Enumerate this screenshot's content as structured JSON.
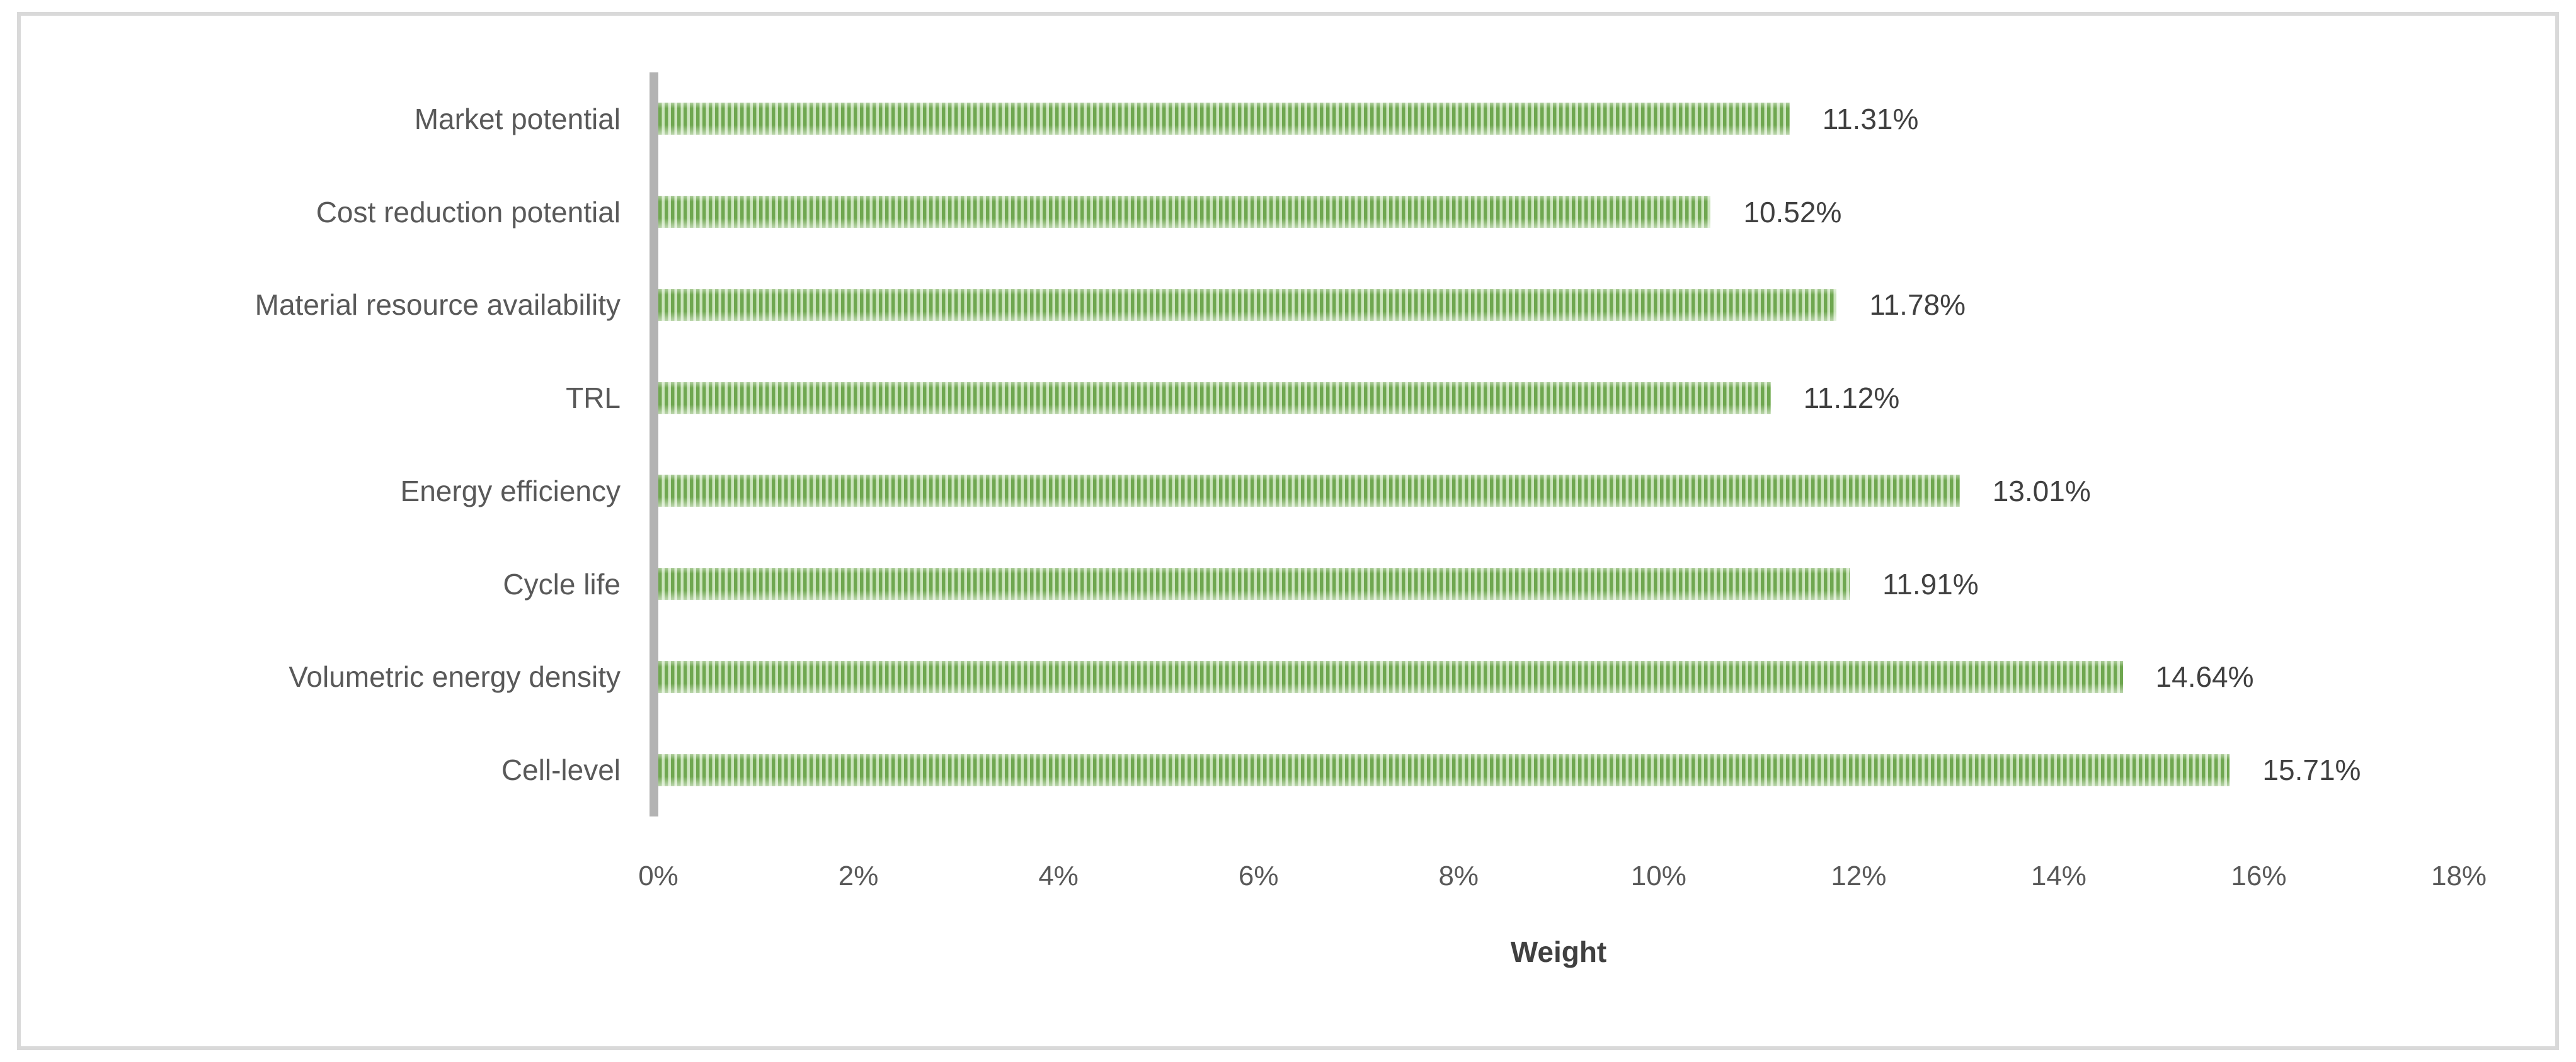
{
  "chart_data": {
    "type": "bar",
    "orientation": "horizontal",
    "title": "",
    "categories": [
      "Market potential",
      "Cost reduction potential",
      "Material resource availability",
      "TRL",
      "Energy efficiency",
      "Cycle life",
      "Volumetric energy density",
      "Cell-level"
    ],
    "values": [
      11.31,
      10.52,
      11.78,
      11.12,
      13.01,
      11.91,
      14.64,
      15.71
    ],
    "value_labels": [
      "11.31%",
      "10.52%",
      "11.78%",
      "11.12%",
      "13.01%",
      "11.91%",
      "14.64%",
      "15.71%"
    ],
    "xlabel": "Weight",
    "ylabel": "",
    "xlim": [
      0,
      18
    ],
    "x_tick_step": 2,
    "x_tick_labels": [
      "0%",
      "2%",
      "4%",
      "6%",
      "8%",
      "10%",
      "12%",
      "14%",
      "16%",
      "18%"
    ],
    "grid": false,
    "legend": false,
    "bar_fill_pattern": "vertical-stripes",
    "colors": {
      "bar_stripe_dark": "#6FA750",
      "bar_stripe_light": "#CBE4BC",
      "axis_line": "#B3B3B3",
      "frame_border": "#D9D9D9",
      "category_label_text": "#595959",
      "tick_label_text": "#595959",
      "value_label_text": "#404040",
      "axis_title_text": "#404040",
      "background": "#FFFFFF"
    }
  }
}
